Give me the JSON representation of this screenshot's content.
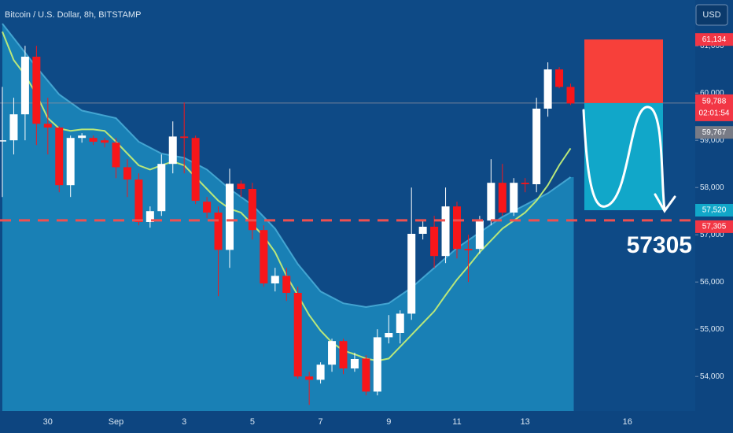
{
  "chart_data": {
    "type": "candlestick",
    "title": "Bitcoin / U.S. Dollar, 8h, BITSTAMP",
    "currency": "USD",
    "open": [
      59000,
      59000,
      59550,
      60770,
      59350,
      59270,
      58050,
      59050,
      59050,
      59000,
      58950,
      58430,
      58170,
      57270,
      57500,
      58500,
      59080,
      59050,
      57700,
      57470,
      56680,
      58080,
      57970,
      57100,
      55970,
      56130,
      55770,
      54000,
      53930,
      54250,
      54750,
      54170,
      54380,
      53680,
      54830,
      54920,
      55330,
      57020,
      57170,
      56550,
      57600,
      56700,
      56700,
      57300,
      58100,
      57470,
      58100,
      58070,
      59670,
      60500,
      60130
    ],
    "high": [
      60130,
      59900,
      61000,
      61000,
      59900,
      59300,
      59100,
      59150,
      59100,
      59050,
      59050,
      58600,
      58300,
      57600,
      58700,
      59400,
      59800,
      59100,
      57800,
      57600,
      58400,
      58150,
      58100,
      57200,
      56300,
      56300,
      55900,
      54100,
      54300,
      54800,
      54800,
      54500,
      54450,
      55000,
      55300,
      55400,
      58000,
      57300,
      57400,
      58000,
      57700,
      57000,
      57400,
      58600,
      58500,
      58200,
      58200,
      59900,
      60650,
      60550,
      60200
    ],
    "low": [
      57800,
      58700,
      59000,
      58900,
      58700,
      57900,
      57800,
      58950,
      58900,
      58850,
      58200,
      57800,
      57200,
      57150,
      57400,
      58300,
      58300,
      57650,
      57350,
      55700,
      56300,
      57800,
      56900,
      55900,
      55800,
      55600,
      53950,
      53400,
      53850,
      54100,
      54050,
      54100,
      53600,
      53600,
      54700,
      54700,
      55200,
      56900,
      56300,
      56400,
      56500,
      56000,
      56600,
      57200,
      57400,
      57400,
      57900,
      57900,
      59500,
      60100,
      59750
    ],
    "close": [
      59000,
      59550,
      60770,
      59350,
      59270,
      58050,
      59050,
      59100,
      58970,
      58950,
      58430,
      58170,
      57270,
      57500,
      58500,
      59080,
      59050,
      57720,
      57470,
      56680,
      58080,
      57970,
      57100,
      55970,
      56130,
      55770,
      54000,
      53930,
      54250,
      54750,
      54170,
      54370,
      53680,
      54830,
      54920,
      55330,
      57020,
      57170,
      56550,
      57600,
      56700,
      56670,
      57300,
      58100,
      57470,
      58100,
      58070,
      59670,
      60500,
      60130,
      59780
    ],
    "up_color": "#ffffff",
    "down_color": "#f7161a",
    "moving_average": {
      "color": "#b9e77a",
      "values": [
        61300,
        60700,
        60380,
        59970,
        59470,
        59250,
        59200,
        59230,
        59230,
        59200,
        58970,
        58720,
        58470,
        58380,
        58470,
        58550,
        58470,
        58220,
        57970,
        57720,
        57550,
        57470,
        57220,
        56970,
        56630,
        56130,
        55720,
        55300,
        54970,
        54720,
        54550,
        54470,
        54380,
        54330,
        54380,
        54630,
        54880,
        55130,
        55380,
        55720,
        56050,
        56330,
        56630,
        56880,
        57130,
        57300,
        57470,
        57720,
        58050,
        58470,
        58830
      ]
    },
    "band": {
      "color": "#1d93c4",
      "x": [
        0,
        3,
        5,
        7,
        10,
        12,
        14,
        16,
        18,
        20,
        22,
        24,
        26,
        28,
        30,
        32,
        34,
        36,
        38,
        40,
        42,
        44,
        46,
        48,
        50
      ],
      "values": [
        61470,
        60550,
        59970,
        59630,
        59470,
        58970,
        58720,
        58630,
        58380,
        57970,
        57630,
        57130,
        56380,
        55800,
        55550,
        55470,
        55550,
        55880,
        56300,
        56720,
        57050,
        57380,
        57630,
        57880,
        58220
      ]
    },
    "ylim": [
      53270,
      61970
    ],
    "yticks": [
      {
        "value": 54000,
        "label": "54,000"
      },
      {
        "value": 55000,
        "label": "55,000"
      },
      {
        "value": 56000,
        "label": "56,000"
      },
      {
        "value": 57000,
        "label": "57,000"
      },
      {
        "value": 58000,
        "label": "58,000"
      },
      {
        "value": 59000,
        "label": "59,000"
      },
      {
        "value": 60000,
        "label": "60,000"
      },
      {
        "value": 61000,
        "label": "61,000"
      }
    ],
    "xticks": [
      {
        "value": 4,
        "label": "30"
      },
      {
        "value": 10,
        "label": "Sep"
      },
      {
        "value": 16,
        "label": "3"
      },
      {
        "value": 22,
        "label": "5"
      },
      {
        "value": 28,
        "label": "7"
      },
      {
        "value": 34,
        "label": "9"
      },
      {
        "value": 40,
        "label": "11"
      },
      {
        "value": 46,
        "label": "13"
      },
      {
        "value": 55,
        "label": "16"
      }
    ],
    "position": {
      "stop": 61134,
      "entry": 59788,
      "target": 57520,
      "stop_color": "#f7403a",
      "target_color": "#11a7c9"
    },
    "dashed_level": {
      "value": 57305,
      "color": "#f05050"
    },
    "annotation": "57305",
    "price_tags": [
      {
        "value": 61134,
        "label": "61,134",
        "color": "#f23645"
      },
      {
        "value": 59788,
        "label": "59,788",
        "color": "#f23645",
        "timer": "02:01:54"
      },
      {
        "value": 59767,
        "label": "59,767",
        "color": "#787b86"
      },
      {
        "value": 57520,
        "label": "57,520",
        "color": "#11a7c9"
      },
      {
        "value": 57305,
        "label": "57,305",
        "color": "#f23645"
      }
    ]
  }
}
